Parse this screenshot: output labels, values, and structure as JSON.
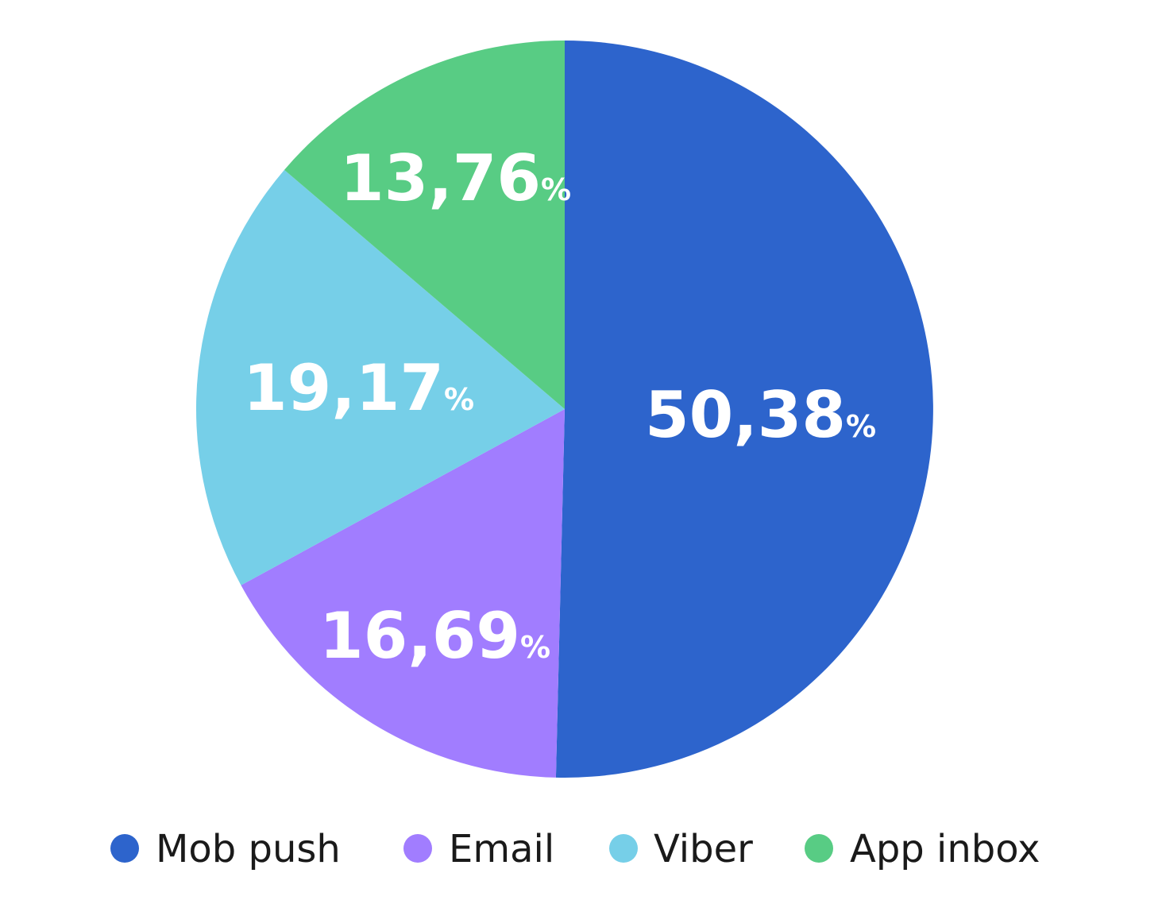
{
  "chart_data": {
    "type": "pie",
    "title": "",
    "start": "top",
    "direction": "clockwise",
    "legend_position": "bottom",
    "slices": [
      {
        "name": "Mob push",
        "value": 50.38,
        "label": "50,38",
        "color": "#2d64cc"
      },
      {
        "name": "Email",
        "value": 16.69,
        "label": "16,69",
        "color": "#a17dff"
      },
      {
        "name": "Viber",
        "value": 19.17,
        "label": "19,17",
        "color": "#76cfe8"
      },
      {
        "name": "App inbox",
        "value": 13.76,
        "label": "13,76",
        "color": "#58cc84"
      }
    ],
    "percent_symbol": "%"
  }
}
